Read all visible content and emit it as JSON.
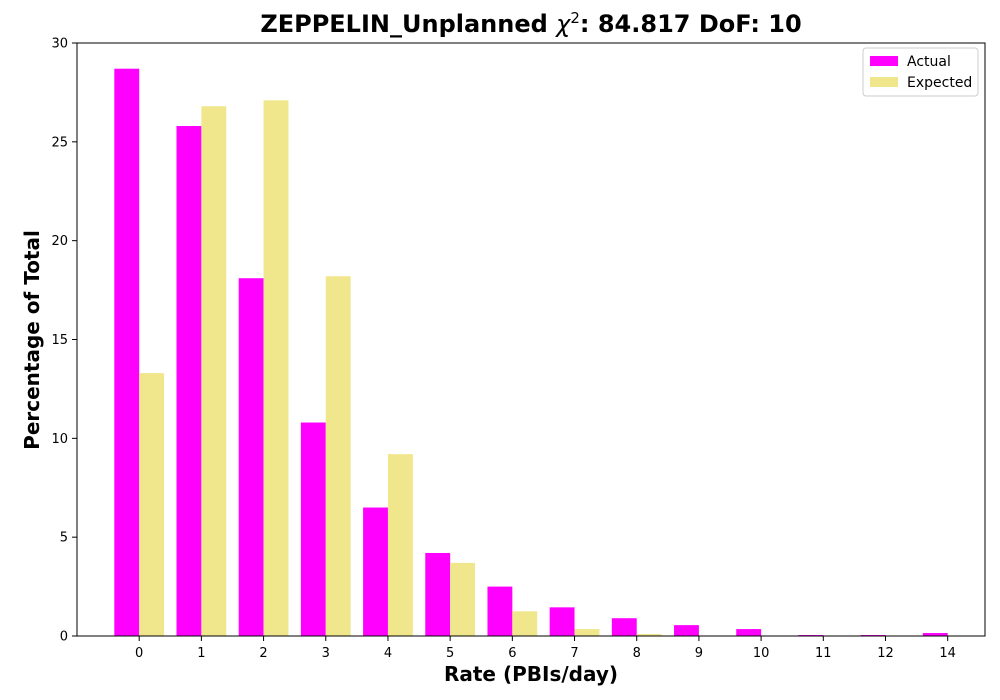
{
  "chart_data": {
    "type": "bar",
    "title": "ZEPPELIN_Unplanned χ²: 84.817 DoF: 10",
    "title_parts": {
      "prefix": "ZEPPELIN_Unplanned ",
      "chi": "χ",
      "sup": "2",
      "suffix": ": 84.817 DoF: 10"
    },
    "xlabel": "Rate (PBIs/day)",
    "ylabel": "Percentage of Total",
    "categories": [
      "0",
      "1",
      "2",
      "3",
      "4",
      "5",
      "6",
      "7",
      "8",
      "9",
      "10",
      "11",
      "12",
      "14"
    ],
    "x_positions": [
      0,
      1,
      2,
      3,
      4,
      5,
      6,
      7,
      8,
      9,
      10,
      11,
      12,
      13
    ],
    "series": [
      {
        "name": "Actual",
        "color": "#ff00ff",
        "values": [
          28.7,
          25.8,
          18.1,
          10.8,
          6.5,
          4.2,
          2.5,
          1.45,
          0.9,
          0.55,
          0.35,
          0.05,
          0.05,
          0.15
        ]
      },
      {
        "name": "Expected",
        "color": "#f0e68c",
        "values": [
          13.3,
          26.8,
          27.1,
          18.2,
          9.2,
          3.7,
          1.25,
          0.35,
          0.1,
          0.02,
          0.0,
          0.0,
          0.0,
          0.0
        ]
      }
    ],
    "ylim": [
      0,
      30
    ],
    "yticks": [
      0,
      5,
      10,
      15,
      20,
      25,
      30
    ],
    "grid": false,
    "legend_position": "top-right"
  }
}
